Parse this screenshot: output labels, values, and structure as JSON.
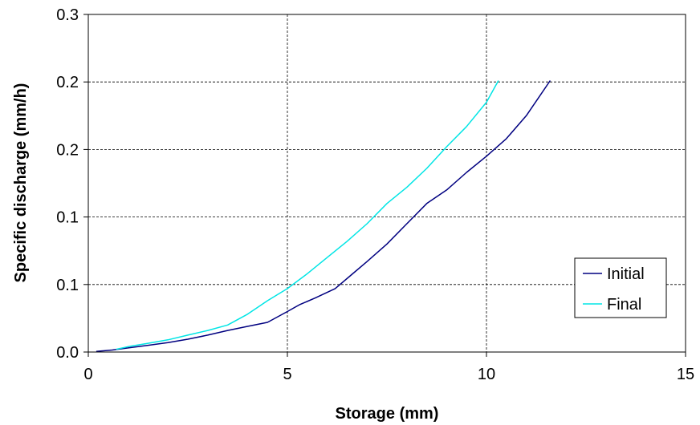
{
  "chart_data": {
    "type": "line",
    "title": "",
    "xlabel": "Storage (mm)",
    "ylabel": "Specific discharge (mm/h)",
    "xlim": [
      0,
      15
    ],
    "ylim": [
      0,
      0.25
    ],
    "xticks": [
      0,
      5,
      10,
      15
    ],
    "xtick_labels": [
      "0",
      "5",
      "10",
      "15"
    ],
    "yticks": [
      0,
      0.05,
      0.1,
      0.15,
      0.2,
      0.25
    ],
    "ytick_labels": [
      "0.0",
      "0.1",
      "0.1",
      "0.2",
      "0.2",
      "0.3"
    ],
    "grid": true,
    "legend_position": "bottom-right",
    "series": [
      {
        "name": "Initial",
        "color": "#000080",
        "x": [
          0.2,
          0.6,
          1.0,
          1.5,
          2.0,
          2.5,
          3.0,
          3.5,
          4.0,
          4.5,
          5.0,
          5.3,
          5.7,
          6.2,
          6.6,
          7.0,
          7.5,
          8.0,
          8.5,
          9.0,
          9.5,
          10.0,
          10.5,
          11.0,
          11.3,
          11.6
        ],
        "y": [
          0.0005,
          0.0015,
          0.003,
          0.005,
          0.007,
          0.0095,
          0.0125,
          0.016,
          0.019,
          0.022,
          0.03,
          0.035,
          0.04,
          0.047,
          0.057,
          0.067,
          0.08,
          0.095,
          0.11,
          0.12,
          0.133,
          0.145,
          0.158,
          0.175,
          0.188,
          0.201
        ]
      },
      {
        "name": "Final",
        "color": "#00E5E5",
        "x": [
          0.7,
          1.0,
          1.5,
          2.0,
          2.5,
          3.0,
          3.5,
          4.0,
          4.5,
          5.0,
          5.5,
          6.0,
          6.5,
          7.0,
          7.5,
          8.0,
          8.5,
          9.0,
          9.5,
          10.0,
          10.3
        ],
        "y": [
          0.002,
          0.004,
          0.0065,
          0.009,
          0.0125,
          0.016,
          0.02,
          0.028,
          0.038,
          0.047,
          0.058,
          0.07,
          0.082,
          0.095,
          0.11,
          0.122,
          0.136,
          0.152,
          0.167,
          0.185,
          0.201
        ]
      }
    ]
  }
}
